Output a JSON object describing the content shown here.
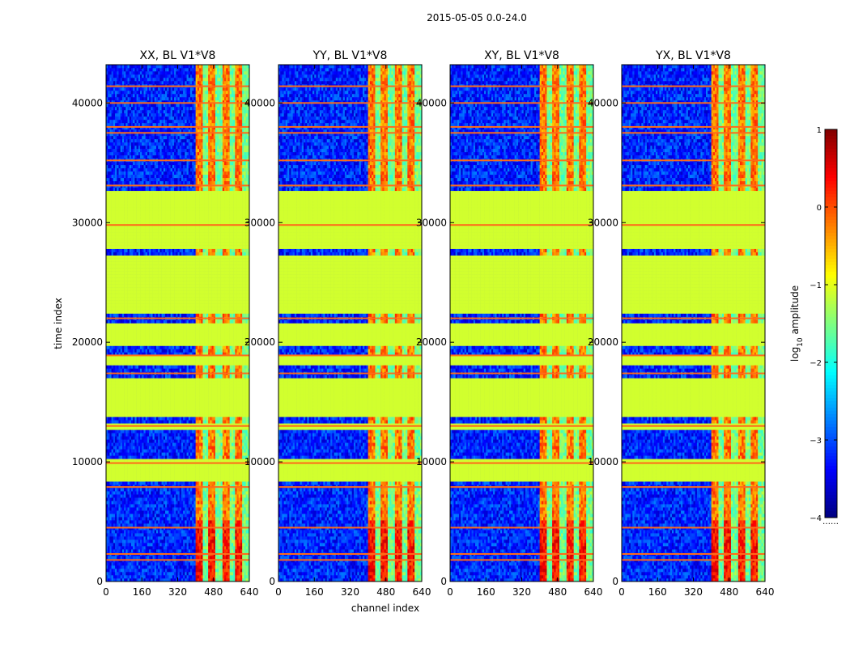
{
  "chart_data": {
    "type": "heatmap",
    "suptitle": "2015-05-05 0.0-24.0",
    "xlabel": "channel index",
    "ylabel": "time index",
    "xlim": [
      0,
      640
    ],
    "ylim": [
      0,
      43200
    ],
    "x_ticks": [
      0,
      160,
      320,
      480,
      640
    ],
    "x_tick_labels": [
      "0",
      "160",
      "320",
      "480",
      "640"
    ],
    "y_ticks": [
      0,
      10000,
      20000,
      30000,
      40000
    ],
    "y_tick_labels": [
      "0",
      "10000",
      "20000",
      "30000",
      "40000"
    ],
    "colormap": "jet",
    "colorbar": {
      "label_prefix": "log",
      "label_sub": "10",
      "label_suffix": " amplitude",
      "range": [
        -4,
        1
      ],
      "ticks": [
        1,
        0,
        -1,
        -2,
        -3,
        -4
      ],
      "tick_labels": [
        "1",
        "0",
        "−1",
        "−2",
        "−3",
        "−4"
      ],
      "extra_label": "……"
    },
    "panels": [
      {
        "title": "XX, BL V1*V8",
        "pol": "XX"
      },
      {
        "title": "YY, BL V1*V8",
        "pol": "YY"
      },
      {
        "title": "XY, BL V1*V8",
        "pol": "XY"
      },
      {
        "title": "YX, BL V1*V8",
        "pol": "YX"
      }
    ],
    "flagged_time_ranges": [
      [
        8400,
        10200
      ],
      [
        12700,
        13300
      ],
      [
        13900,
        17000
      ],
      [
        18000,
        19000
      ],
      [
        19700,
        21600
      ],
      [
        22300,
        27400
      ],
      [
        27900,
        32800
      ]
    ],
    "flag_value": -1.1,
    "rfi_lines": [
      1800,
      2300,
      4500,
      7900,
      9900,
      13000,
      17400,
      18900,
      22000,
      29800,
      33100,
      35200,
      37500,
      38000,
      40000,
      41400
    ],
    "signal_band_channels": [
      400,
      640
    ],
    "background_value": -3.2
  }
}
